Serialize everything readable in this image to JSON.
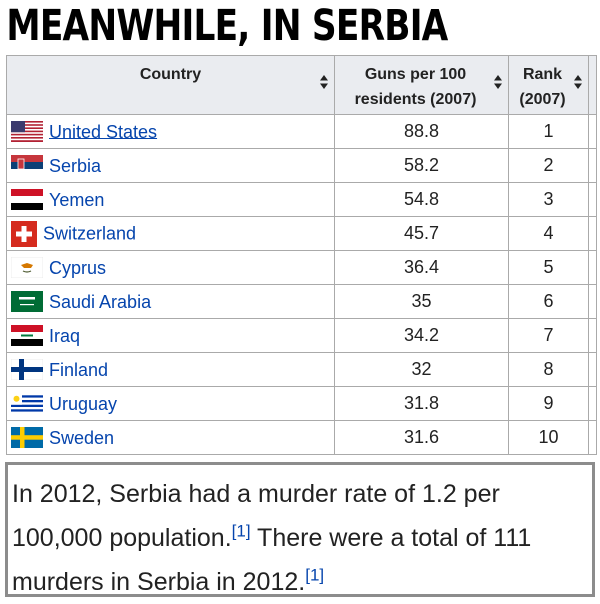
{
  "headline": "MEANWHILE, IN SERBIA",
  "table": {
    "headers": {
      "country": "Country",
      "guns_line1": "Guns per 100",
      "guns_line2": "residents (2007)",
      "rank_line1": "Rank",
      "rank_line2": "(2007)"
    },
    "rows": [
      {
        "country": "United States",
        "flag": "us-flag-icon",
        "guns": "88.8",
        "rank": "1"
      },
      {
        "country": "Serbia",
        "flag": "serbia-flag-icon",
        "guns": "58.2",
        "rank": "2"
      },
      {
        "country": "Yemen",
        "flag": "yemen-flag-icon",
        "guns": "54.8",
        "rank": "3"
      },
      {
        "country": "Switzerland",
        "flag": "switzerland-flag-icon",
        "guns": "45.7",
        "rank": "4"
      },
      {
        "country": "Cyprus",
        "flag": "cyprus-flag-icon",
        "guns": "36.4",
        "rank": "5"
      },
      {
        "country": "Saudi Arabia",
        "flag": "saudi-arabia-flag-icon",
        "guns": "35",
        "rank": "6"
      },
      {
        "country": "Iraq",
        "flag": "iraq-flag-icon",
        "guns": "34.2",
        "rank": "7"
      },
      {
        "country": "Finland",
        "flag": "finland-flag-icon",
        "guns": "32",
        "rank": "8"
      },
      {
        "country": "Uruguay",
        "flag": "uruguay-flag-icon",
        "guns": "31.8",
        "rank": "9"
      },
      {
        "country": "Sweden",
        "flag": "sweden-flag-icon",
        "guns": "31.6",
        "rank": "10"
      }
    ]
  },
  "caption": {
    "part1": "In 2012, Serbia had a murder rate of 1.2 per 100,000 population.",
    "cite1": "[1]",
    "part2": " There were a total of 111 murders in Serbia in 2012.",
    "cite2": "[1]"
  },
  "colors": {
    "link": "#0645ad",
    "header_bg": "#eaecf0",
    "border": "#aaaaaa"
  }
}
